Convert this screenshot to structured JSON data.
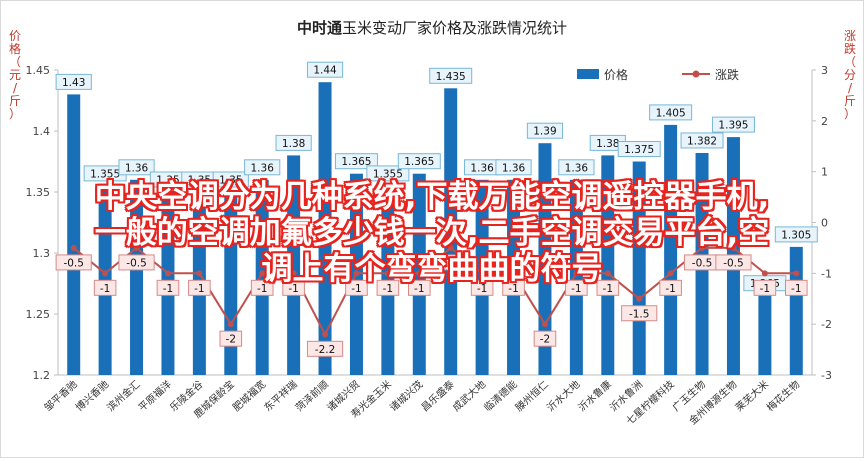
{
  "chart_data": {
    "type": "bar+line",
    "title_bold": "中时通",
    "title_rest": "玉米变动厂家价格及涨跌情况统计",
    "ylabel_left": "价格（元/斤）",
    "ylabel_right": "涨跌（分/斤）",
    "ylim_left": [
      1.2,
      1.45
    ],
    "yticks_left": [
      "1.2",
      "1.25",
      "1.3",
      "1.35",
      "1.4",
      "1.45"
    ],
    "ylim_right": [
      -3,
      3
    ],
    "yticks_right": [
      "-3",
      "-2",
      "-1",
      "0",
      "1",
      "2",
      "3"
    ],
    "legend": {
      "bar": "价格",
      "line": "涨跌",
      "position": "top"
    },
    "categories": [
      "邹平香驰",
      "博兴香驰",
      "滨州金汇",
      "平原福洋",
      "乐陵金谷",
      "鹿城保龄宝",
      "肥城福宽",
      "东平祥瑞",
      "菏泽前顺",
      "诸城兴贸",
      "寿光金玉米",
      "诸城兴茂",
      "昌乐盛泰",
      "成武大地",
      "临清德能",
      "滕州恒仁",
      "沂水大地",
      "沂水鲁康",
      "沂水鲁洲",
      "七星柠檬科技",
      "广玉生物",
      "金州博源生物",
      "莱芜大米",
      "梅花生物"
    ],
    "series": [
      {
        "name": "价格",
        "kind": "bar",
        "values": [
          1.43,
          1.355,
          1.36,
          1.35,
          1.35,
          1.35,
          1.36,
          1.38,
          1.44,
          1.365,
          1.355,
          1.365,
          1.435,
          1.36,
          1.36,
          1.39,
          1.36,
          1.38,
          1.375,
          1.405,
          1.382,
          1.395,
          1.265,
          1.305
        ]
      },
      {
        "name": "涨跌",
        "kind": "line",
        "values": [
          -0.5,
          -1,
          -0.5,
          -1,
          -1,
          -2,
          -1,
          -1,
          -2.2,
          -1,
          -1,
          -1,
          -0.5,
          -1,
          -1,
          -2,
          -1,
          -1,
          -1.5,
          -1,
          -0.5,
          -0.5,
          -1,
          -1
        ]
      }
    ],
    "bar_labels": [
      "1.43",
      "1.355",
      "1.36",
      "1.35",
      "1.35",
      "1.35",
      "1.36",
      "1.38",
      "1.44",
      "1.365",
      "1.355",
      "1.365",
      "1.435",
      "1.36",
      "1.36",
      "1.39",
      "1.36",
      "1.38",
      "1.375",
      "1.405",
      "1.382",
      "1.395",
      "1.265",
      "1.305"
    ],
    "line_labels": [
      "-0.5",
      "-1",
      "-0.5",
      "-1",
      "-1",
      "-2",
      "-1",
      "-1",
      "-2.2",
      "-1",
      "-1",
      "-1",
      "-0.5",
      "-1",
      "-1",
      "-2",
      "-1",
      "-1",
      "-1.5",
      "-1",
      "-0.5",
      "-0.5",
      "-1",
      "-1"
    ]
  },
  "overlay_text": [
    "中央空调分为几种系统,下载万能空调遥控器手机,",
    "一般的空调加氟多少钱一次,二手空调交易平台,空",
    "调上有个弯弯曲曲的符号"
  ],
  "colors": {
    "bar": "#1a70b8",
    "line": "#c0504d",
    "bar_label_bg": "#e7f4fb",
    "bar_label_border": "#79b7d8",
    "line_label_bg": "#fbe7e6",
    "line_label_border": "#d68a88",
    "overlay_text": "#ffffff",
    "overlay_outline": "#e8231e"
  }
}
